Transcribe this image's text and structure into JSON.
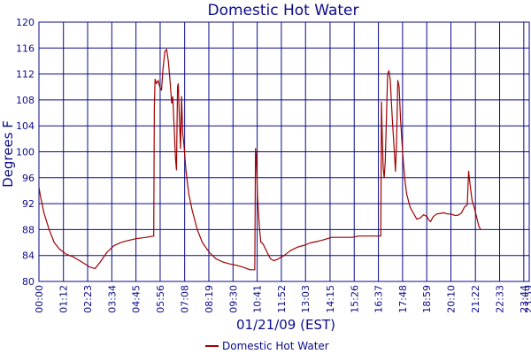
{
  "chart_data": {
    "type": "line",
    "title": "Domestic Hot Water",
    "xlabel": "01/21/09 (EST)",
    "ylabel": "Degrees F",
    "ylim": [
      80,
      120
    ],
    "yticks": [
      80,
      84,
      88,
      92,
      96,
      100,
      104,
      108,
      112,
      116,
      120
    ],
    "xlim_minutes": [
      0,
      1440
    ],
    "xticks": [
      "00:00",
      "01:12",
      "02:23",
      "03:34",
      "04:45",
      "05:56",
      "07:08",
      "08:19",
      "09:30",
      "10:41",
      "11:52",
      "13:03",
      "14:15",
      "15:26",
      "16:37",
      "17:48",
      "18:59",
      "20:10",
      "21:22",
      "22:33",
      "23:44"
    ],
    "xtick_minutes": [
      0,
      72,
      143,
      214,
      285,
      356,
      428,
      499,
      570,
      641,
      712,
      783,
      855,
      926,
      997,
      1068,
      1139,
      1210,
      1282,
      1353,
      1424
    ],
    "last_tick_label": "23:59",
    "grid": true,
    "legend_position": "bottom",
    "series": [
      {
        "name": "Domestic Hot Water",
        "color": "#a00000",
        "points": [
          [
            0,
            94.5
          ],
          [
            5,
            93
          ],
          [
            15,
            90.5
          ],
          [
            30,
            88
          ],
          [
            45,
            86
          ],
          [
            60,
            85
          ],
          [
            80,
            84.2
          ],
          [
            100,
            83.8
          ],
          [
            120,
            83.2
          ],
          [
            150,
            82.2
          ],
          [
            165,
            82
          ],
          [
            180,
            83
          ],
          [
            200,
            84.5
          ],
          [
            220,
            85.5
          ],
          [
            240,
            86
          ],
          [
            260,
            86.3
          ],
          [
            285,
            86.6
          ],
          [
            315,
            86.8
          ],
          [
            337,
            87
          ],
          [
            339,
            107
          ],
          [
            341,
            111.2
          ],
          [
            345,
            110.5
          ],
          [
            350,
            111
          ],
          [
            355,
            110
          ],
          [
            360,
            109.5
          ],
          [
            364,
            112.5
          ],
          [
            370,
            115.5
          ],
          [
            375,
            115.8
          ],
          [
            380,
            114
          ],
          [
            385,
            111
          ],
          [
            390,
            107.5
          ],
          [
            393,
            108.5
          ],
          [
            397,
            104
          ],
          [
            401,
            99
          ],
          [
            404,
            97.2
          ],
          [
            407,
            110
          ],
          [
            409,
            110.5
          ],
          [
            412,
            106
          ],
          [
            416,
            100.5
          ],
          [
            419,
            108.5
          ],
          [
            422,
            103
          ],
          [
            426,
            101
          ],
          [
            432,
            97
          ],
          [
            440,
            93.5
          ],
          [
            450,
            91
          ],
          [
            465,
            88
          ],
          [
            480,
            86
          ],
          [
            500,
            84.5
          ],
          [
            520,
            83.5
          ],
          [
            540,
            83
          ],
          [
            560,
            82.7
          ],
          [
            580,
            82.5
          ],
          [
            600,
            82.2
          ],
          [
            620,
            81.8
          ],
          [
            634,
            81.8
          ],
          [
            636,
            100.5
          ],
          [
            638,
            99.5
          ],
          [
            642,
            93
          ],
          [
            648,
            88
          ],
          [
            652,
            86
          ],
          [
            655,
            86
          ],
          [
            660,
            85.6
          ],
          [
            670,
            84.5
          ],
          [
            680,
            83.5
          ],
          [
            690,
            83.2
          ],
          [
            700,
            83.4
          ],
          [
            720,
            84
          ],
          [
            740,
            84.8
          ],
          [
            760,
            85.3
          ],
          [
            780,
            85.6
          ],
          [
            800,
            86
          ],
          [
            820,
            86.2
          ],
          [
            835,
            86.4
          ],
          [
            860,
            86.8
          ],
          [
            880,
            86.8
          ],
          [
            900,
            86.8
          ],
          [
            920,
            86.8
          ],
          [
            940,
            87
          ],
          [
            1004,
            87
          ],
          [
            1006,
            107.7
          ],
          [
            1008,
            103
          ],
          [
            1011,
            97.5
          ],
          [
            1014,
            96
          ],
          [
            1017,
            98.5
          ],
          [
            1020,
            104
          ],
          [
            1024,
            112
          ],
          [
            1028,
            112.5
          ],
          [
            1032,
            111
          ],
          [
            1038,
            105
          ],
          [
            1044,
            100
          ],
          [
            1047,
            97
          ],
          [
            1050,
            101
          ],
          [
            1054,
            111
          ],
          [
            1058,
            110
          ],
          [
            1062,
            105
          ],
          [
            1068,
            100
          ],
          [
            1074,
            96
          ],
          [
            1080,
            93.5
          ],
          [
            1090,
            91.5
          ],
          [
            1100,
            90.5
          ],
          [
            1110,
            89.6
          ],
          [
            1120,
            89.8
          ],
          [
            1130,
            90.3
          ],
          [
            1140,
            90
          ],
          [
            1145,
            89.5
          ],
          [
            1150,
            89.2
          ],
          [
            1158,
            90
          ],
          [
            1168,
            90.4
          ],
          [
            1180,
            90.5
          ],
          [
            1190,
            90.6
          ],
          [
            1200,
            90.4
          ],
          [
            1210,
            90.4
          ],
          [
            1220,
            90.2
          ],
          [
            1230,
            90.2
          ],
          [
            1240,
            90.5
          ],
          [
            1250,
            91.5
          ],
          [
            1258,
            91.8
          ],
          [
            1262,
            97
          ],
          [
            1266,
            95
          ],
          [
            1272,
            92.5
          ],
          [
            1278,
            91.5
          ],
          [
            1285,
            90
          ],
          [
            1292,
            88.5
          ],
          [
            1297,
            88
          ]
        ]
      }
    ]
  }
}
